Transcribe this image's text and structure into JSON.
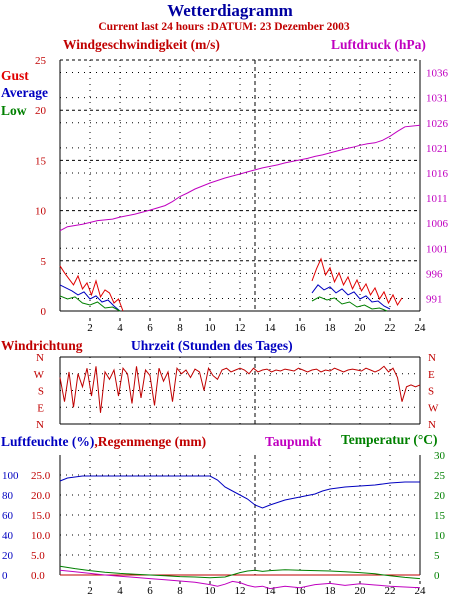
{
  "colors": {
    "title": "#0000a0",
    "subtitle": "#c00000",
    "wind": "#c00000",
    "pressure": "#c000c0",
    "gust": "#e00000",
    "average": "#0000c0",
    "low": "#008000",
    "humidity": "#0000c0",
    "rain": "#c00000",
    "dewpoint": "#c000c0",
    "temperature": "#008000",
    "axis": "#000000",
    "grid": "#000000"
  },
  "chart_data": [
    {
      "type": "line",
      "title": "Wetterdiagramm",
      "subtitle": "Current last 24 hours :DATUM: 23 Dezember 2003",
      "ylabel": "Windgeschwindigkeit (m/s)",
      "y2label": "Luftdruck (hPa)",
      "xlim": [
        0,
        24
      ],
      "xticks": [
        2,
        4,
        6,
        8,
        10,
        12,
        14,
        16,
        18,
        20,
        22,
        24
      ],
      "ylim": [
        0,
        25
      ],
      "yticks": [
        0,
        5,
        10,
        15,
        20,
        25
      ],
      "y2ticks": [
        991,
        996,
        1001,
        1006,
        1011,
        1016,
        1021,
        1026,
        1031,
        1036
      ],
      "legend": [
        "Gust",
        "Average",
        "Low"
      ],
      "legend_position": "left",
      "grid": true,
      "series": [
        {
          "name": "Luftdruck (hPa)",
          "axis": "right",
          "x": [
            0,
            0.5,
            1.5,
            2.5,
            3.5,
            4,
            5,
            6,
            7,
            7.5,
            8,
            8.5,
            9,
            9.5,
            10,
            10.5,
            11,
            11.5,
            12,
            12.5,
            13,
            13.5,
            14,
            14.5,
            15,
            15.5,
            16,
            16.5,
            17,
            17.5,
            18,
            18.5,
            19,
            19.5,
            20,
            20.5,
            21,
            21.5,
            22,
            22.5,
            23,
            24
          ],
          "values": [
            1004.5,
            1005.3,
            1005.8,
            1006.5,
            1006.8,
            1007.2,
            1007.8,
            1008.6,
            1009.5,
            1010.3,
            1011.3,
            1012.0,
            1012.8,
            1013.4,
            1014.0,
            1014.5,
            1015.0,
            1015.4,
            1015.8,
            1016.2,
            1016.6,
            1017.0,
            1017.3,
            1017.6,
            1018.0,
            1018.3,
            1018.6,
            1018.9,
            1019.3,
            1019.6,
            1020.0,
            1020.4,
            1020.8,
            1021.1,
            1021.5,
            1021.8,
            1022.0,
            1022.5,
            1023.3,
            1024.3,
            1025.2,
            1025.5
          ]
        },
        {
          "name": "Gust",
          "x": [
            0,
            0.3,
            0.6,
            0.9,
            1.2,
            1.5,
            1.8,
            2.1,
            2.4,
            2.7,
            3.0,
            3.3,
            3.6,
            3.9,
            4.2,
            16.8,
            17.1,
            17.4,
            17.7,
            18.0,
            18.3,
            18.6,
            18.9,
            19.2,
            19.5,
            19.8,
            20.1,
            20.4,
            20.7,
            21.0,
            21.3,
            21.6,
            21.9,
            22.2,
            22.5,
            22.8
          ],
          "values": [
            4.5,
            3.8,
            3.2,
            2.6,
            3.5,
            2.2,
            2.8,
            1.6,
            3.0,
            1.4,
            2.1,
            1.8,
            0.8,
            1.2,
            0.0,
            3.0,
            4.2,
            5.2,
            3.6,
            4.3,
            2.9,
            3.8,
            2.6,
            3.4,
            2.2,
            3.1,
            2.0,
            2.7,
            1.6,
            2.3,
            1.2,
            1.9,
            0.8,
            1.6,
            0.6,
            1.3
          ]
        },
        {
          "name": "Average",
          "x": [
            0,
            0.4,
            0.8,
            1.2,
            1.6,
            2.0,
            2.4,
            2.8,
            3.2,
            3.6,
            4.0,
            16.8,
            17.2,
            17.6,
            18.0,
            18.4,
            18.8,
            19.2,
            19.6,
            20.0,
            20.4,
            20.8,
            21.2,
            21.6,
            22.0
          ],
          "values": [
            2.6,
            2.3,
            2.0,
            1.6,
            1.9,
            1.2,
            1.5,
            0.9,
            1.1,
            0.5,
            0.0,
            1.8,
            2.6,
            2.1,
            2.4,
            1.8,
            2.2,
            1.6,
            1.9,
            1.2,
            1.5,
            0.9,
            1.0,
            0.5,
            0.2
          ]
        },
        {
          "name": "Low",
          "x": [
            0,
            0.5,
            1.0,
            1.5,
            2.0,
            2.5,
            3.0,
            3.5,
            4.0,
            16.8,
            17.3,
            17.8,
            18.3,
            18.8,
            19.3,
            19.8,
            20.3,
            20.8,
            21.3,
            21.8
          ],
          "values": [
            1.5,
            1.2,
            1.4,
            0.8,
            0.6,
            0.9,
            0.3,
            0.4,
            0.0,
            1.0,
            1.4,
            1.1,
            1.3,
            0.7,
            0.9,
            0.4,
            0.6,
            0.2,
            0.3,
            0.0
          ]
        }
      ]
    },
    {
      "type": "line",
      "title": "Windrichtung",
      "xlabel": "Uhrzeit (Stunden des Tages)",
      "xlim": [
        0,
        24
      ],
      "ycategories": [
        "N",
        "E",
        "S",
        "W",
        "N"
      ],
      "y2categories": [
        "N",
        "W",
        "S",
        "E",
        "N"
      ],
      "series": [
        {
          "name": "Windrichtung",
          "x": [
            0.0,
            0.3,
            0.6,
            0.9,
            1.2,
            1.5,
            1.8,
            2.1,
            2.4,
            2.7,
            3.0,
            3.3,
            3.6,
            3.9,
            4.2,
            4.5,
            4.8,
            5.1,
            5.4,
            5.7,
            6.0,
            6.3,
            6.6,
            6.9,
            7.2,
            7.5,
            7.8,
            8.1,
            8.4,
            8.7,
            9.0,
            9.3,
            9.6,
            9.9,
            10.2,
            10.5,
            10.8,
            11.1,
            11.4,
            11.7,
            12.0,
            12.3,
            12.6,
            12.9,
            13.2,
            13.5,
            13.8,
            14.1,
            14.4,
            14.7,
            15.0,
            15.3,
            15.6,
            15.9,
            16.2,
            16.5,
            16.8,
            17.1,
            17.4,
            17.7,
            18.0,
            18.3,
            18.6,
            18.9,
            19.2,
            19.5,
            19.8,
            20.1,
            20.4,
            20.7,
            21.0,
            21.3,
            21.6,
            21.9,
            22.2,
            22.5,
            22.8,
            23.1,
            23.4,
            23.7,
            24.0
          ],
          "values": [
            250,
            120,
            280,
            90,
            270,
            200,
            300,
            150,
            310,
            60,
            280,
            240,
            290,
            150,
            300,
            270,
            110,
            310,
            140,
            290,
            260,
            100,
            300,
            230,
            280,
            120,
            300,
            270,
            290,
            250,
            295,
            280,
            180,
            300,
            260,
            240,
            290,
            300,
            280,
            290,
            300,
            290,
            270,
            300,
            280,
            290,
            295,
            280,
            290,
            285,
            295,
            290,
            285,
            300,
            290,
            280,
            290,
            295,
            280,
            290,
            285,
            300,
            290,
            280,
            290,
            295,
            290,
            285,
            300,
            290,
            280,
            290,
            310,
            280,
            300,
            250,
            120,
            200,
            210,
            200,
            210
          ]
        }
      ]
    },
    {
      "type": "line",
      "xlim": [
        0,
        24
      ],
      "xticks": [
        2,
        4,
        6,
        8,
        10,
        12,
        14,
        16,
        18,
        20,
        22,
        24
      ],
      "ylabel": "Luftfeuchte (%)",
      "y_ticks": [
        0,
        20,
        40,
        60,
        80,
        100
      ],
      "ylabel2": "Regenmenge (mm)",
      "y2_ticks": [
        "0.0",
        "5.0",
        "10.0",
        "15.0",
        "20.0",
        "25.0"
      ],
      "ylabel3": "Taupunkt",
      "ylabel4": "Temperatur (°C)",
      "y4_ticks": [
        0,
        5,
        10,
        15,
        20,
        25,
        30
      ],
      "series": [
        {
          "name": "Luftfeuchte (%)",
          "axis": "humidity",
          "x": [
            0,
            0.5,
            1,
            1.5,
            2,
            3,
            4,
            5,
            6,
            7,
            8,
            9,
            10,
            10.5,
            11,
            11.5,
            12,
            12.5,
            13,
            13.5,
            14,
            15,
            16,
            17,
            17.5,
            18,
            19,
            20,
            21,
            22,
            23,
            24
          ],
          "values": [
            94,
            97,
            98,
            99,
            99,
            99,
            99,
            99,
            99,
            99,
            99,
            99,
            99,
            95,
            88,
            84,
            80,
            76,
            70,
            67,
            70,
            75,
            78,
            81,
            84,
            86,
            88,
            89,
            90,
            92,
            93,
            93
          ]
        },
        {
          "name": "Regenmenge (mm)",
          "axis": "rain",
          "x": [
            0,
            24
          ],
          "values": [
            0.0,
            0.0
          ]
        },
        {
          "name": "Taupunkt",
          "axis": "temperature",
          "x": [
            0,
            1,
            2,
            3,
            4,
            5,
            6,
            7,
            8,
            9,
            10,
            10.5,
            11,
            11.5,
            12,
            12.5,
            13,
            13.5,
            14,
            15,
            16,
            17,
            18,
            19,
            20,
            21,
            22,
            23,
            24
          ],
          "values": [
            1.2,
            0.8,
            0.4,
            0.0,
            -0.3,
            -0.6,
            -0.9,
            -1.2,
            -1.5,
            -1.8,
            -2.4,
            -2.8,
            -2.3,
            -1.6,
            -1.9,
            -2.6,
            -3.0,
            -2.8,
            -3.4,
            -2.8,
            -3.2,
            -2.4,
            -2.1,
            -2.6,
            -2.2,
            -2.5,
            -2.8,
            -3.0,
            -3.2
          ]
        },
        {
          "name": "Temperatur (°C)",
          "axis": "temperature",
          "x": [
            0,
            1,
            2,
            3,
            4,
            5,
            6,
            7,
            8,
            9,
            10,
            11,
            12,
            12.5,
            13,
            13.5,
            14,
            15,
            16,
            17,
            18,
            19,
            20,
            21,
            22,
            23,
            24
          ],
          "values": [
            2.2,
            1.6,
            1.1,
            0.7,
            0.4,
            0.2,
            0.0,
            -0.2,
            -0.4,
            -0.5,
            -0.7,
            -0.5,
            0.6,
            1.0,
            1.2,
            0.9,
            1.1,
            1.3,
            1.2,
            1.1,
            1.0,
            0.8,
            0.6,
            0.3,
            -0.2,
            -0.6,
            -0.9
          ]
        }
      ]
    }
  ]
}
